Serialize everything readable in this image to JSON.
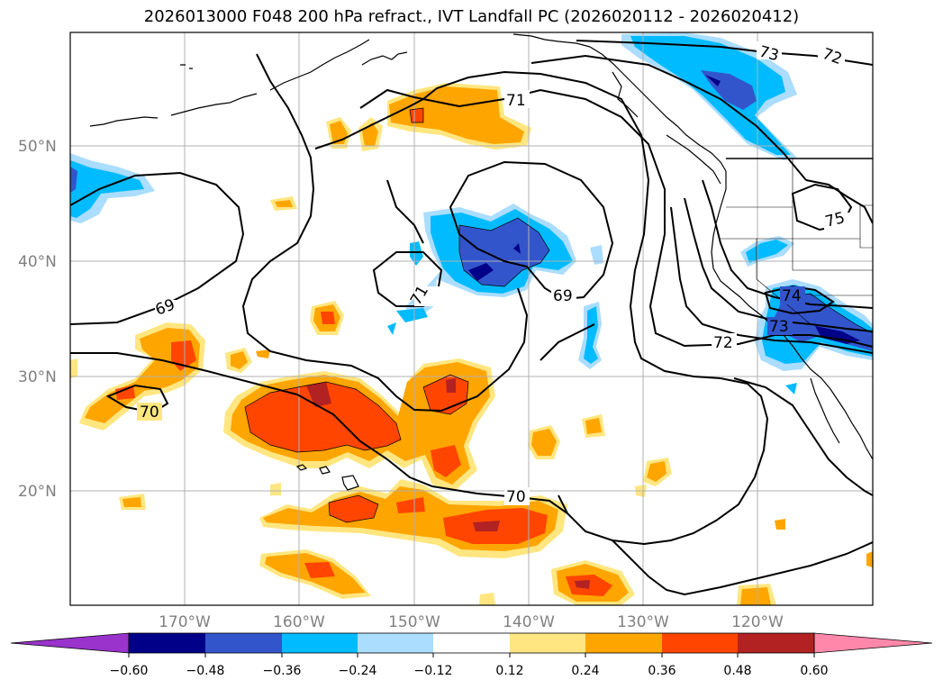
{
  "title": "2026013000 F048 200 hPa refract., IVT Landfall PC (2026020112 - 2026020412)",
  "lat_labels": [
    "50°N",
    "40°N",
    "30°N",
    "20°N"
  ],
  "lon_labels": [
    "170°W",
    "160°W",
    "150°W",
    "140°W",
    "130°W",
    "120°W"
  ],
  "contour_labels": [
    "73",
    "72",
    "71",
    "75",
    "69",
    "71",
    "69",
    "74",
    "73",
    "72",
    "70",
    "70"
  ],
  "colorbar": {
    "ticks": [
      "−0.60",
      "−0.48",
      "−0.36",
      "−0.24",
      "−0.12",
      "0.12",
      "0.24",
      "0.36",
      "0.48",
      "0.60"
    ],
    "colors": {
      "lt_min": "#9933cc",
      "n60": "#000088",
      "n48": "#3355cc",
      "n36": "#00bbff",
      "n24": "#aaddff",
      "zero": "#ffffff",
      "p12": "#ffe680",
      "p24": "#ffa500",
      "p36": "#ff4500",
      "p48": "#b22222",
      "gt_max": "#ff88aa"
    }
  }
}
